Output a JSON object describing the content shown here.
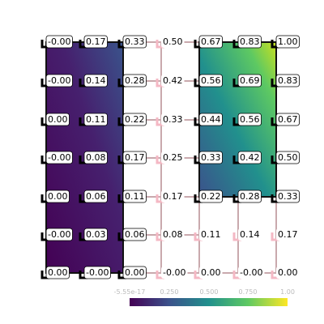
{
  "grid": {
    "rows": [
      [
        "-0.00",
        "0.17",
        "0.33",
        "0.50",
        "0.67",
        "0.83",
        "1.00"
      ],
      [
        "-0.00",
        "0.14",
        "0.28",
        "0.42",
        "0.56",
        "0.69",
        "0.83"
      ],
      [
        "0.00",
        "0.11",
        "0.22",
        "0.33",
        "0.44",
        "0.56",
        "0.67"
      ],
      [
        "-0.00",
        "0.08",
        "0.17",
        "0.25",
        "0.33",
        "0.42",
        "0.50"
      ],
      [
        "0.00",
        "0.06",
        "0.11",
        "0.17",
        "0.22",
        "0.28",
        "0.33"
      ],
      [
        "-0.00",
        "0.03",
        "0.06",
        "0.08",
        "0.11",
        "0.14",
        "0.17"
      ],
      [
        "0.00",
        "-0.00",
        "0.00",
        "-0.00",
        "0.00",
        "-0.00",
        "0.00"
      ]
    ]
  },
  "colorbar": {
    "tick_labels": [
      "-5.55e-17",
      "0.250",
      "0.500",
      "0.750",
      "1.00"
    ]
  }
}
